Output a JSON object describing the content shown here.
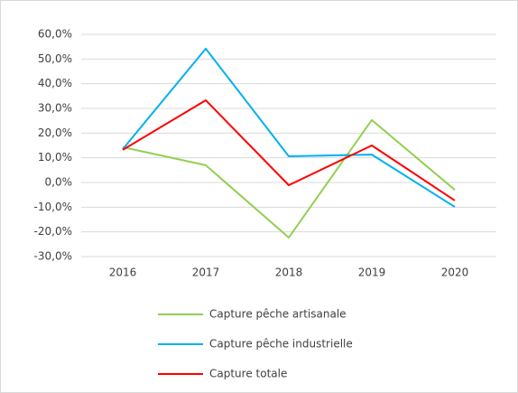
{
  "chart_data": {
    "type": "line",
    "categories": [
      "2016",
      "2017",
      "2018",
      "2019",
      "2020"
    ],
    "series": [
      {
        "name": "Capture pêche artisanale",
        "color": "#92d050",
        "values": [
          14.3,
          7,
          -22.3,
          25.3,
          -3
        ]
      },
      {
        "name": "Capture pêche industrielle",
        "color": "#00b0f0",
        "values": [
          13.5,
          54.2,
          10.6,
          11.3,
          -9.9
        ]
      },
      {
        "name": "Capture totale",
        "color": "#ff0000",
        "values": [
          13.2,
          33.3,
          -1.1,
          15,
          -7.3
        ]
      }
    ],
    "ylim": [
      -30,
      60
    ],
    "yticks": [
      {
        "value": -30,
        "label": "-30,0%"
      },
      {
        "value": -20,
        "label": "-20,0%"
      },
      {
        "value": -10,
        "label": "-10,0%"
      },
      {
        "value": 0,
        "label": "0,0%"
      },
      {
        "value": 10,
        "label": "10,0%"
      },
      {
        "value": 20,
        "label": "20,0%"
      },
      {
        "value": 30,
        "label": "30,0%"
      },
      {
        "value": 40,
        "label": "40,0%"
      },
      {
        "value": 50,
        "label": "50,0%"
      },
      {
        "value": 60,
        "label": "60,0%"
      }
    ],
    "grid": true,
    "legend": "bottom"
  }
}
